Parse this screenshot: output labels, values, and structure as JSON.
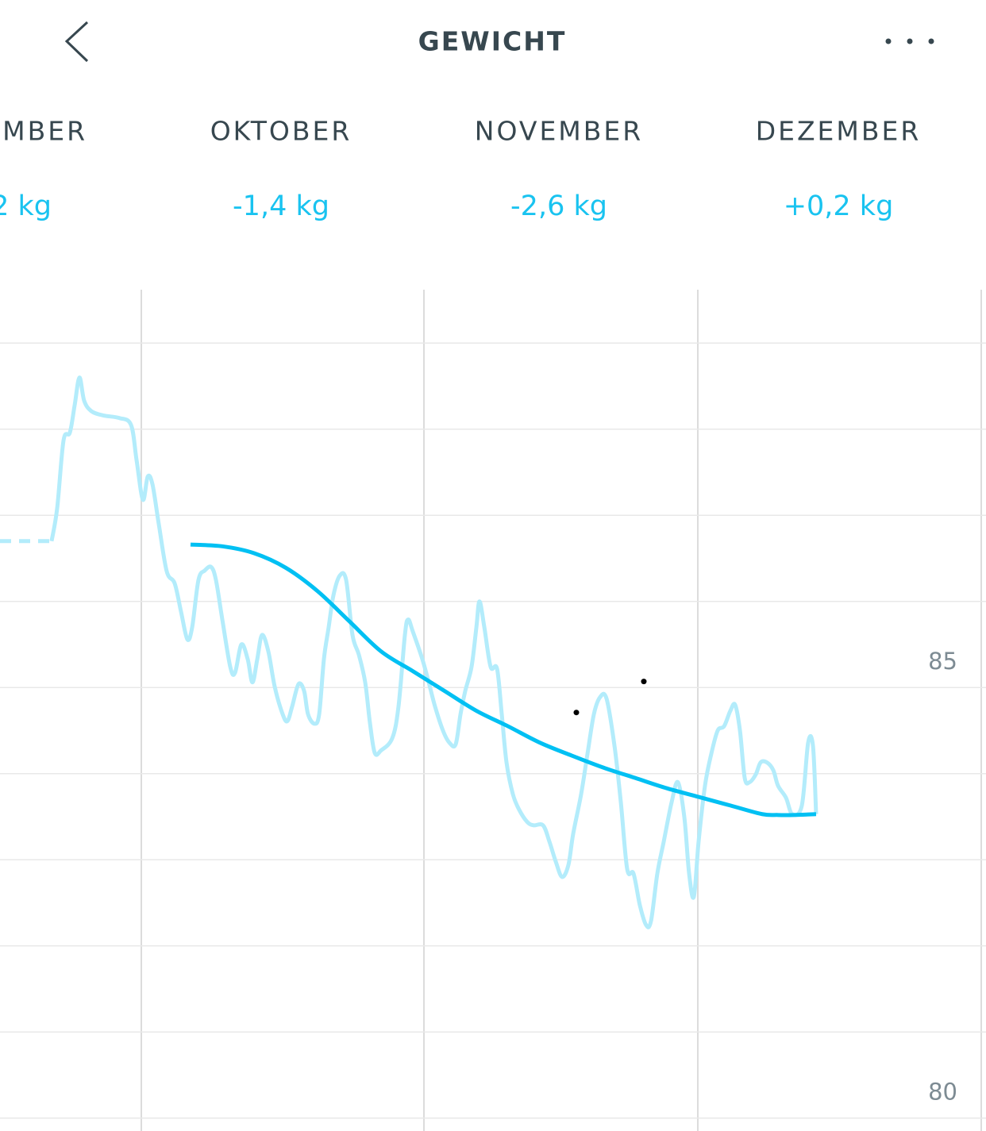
{
  "header": {
    "title": "GEWICHT"
  },
  "months": [
    {
      "label": "EMBER",
      "change": "2 kg"
    },
    {
      "label": "OKTOBER",
      "change": "-1,4 kg"
    },
    {
      "label": "NOVEMBER",
      "change": "-2,6 kg"
    },
    {
      "label": "DEZEMBER",
      "change": "+0,2 kg"
    }
  ],
  "chart_data": {
    "type": "line",
    "xlim": [
      -15.48,
      92.52
    ],
    "ylim": [
      79.85,
      89.62
    ],
    "yticks": [
      80,
      85
    ],
    "ygrid": [
      80,
      81,
      82,
      83,
      84,
      85,
      86,
      87,
      88,
      89
    ],
    "series": [
      {
        "color": "#b3ecfb",
        "dashed": true,
        "x": [
          -15.48,
          -9.83
        ],
        "values": [
          86.7,
          86.7
        ]
      },
      {
        "color": "#b3ecfb",
        "x": [
          -9.83,
          -9.22,
          -8.52,
          -7.83,
          -7.3,
          -6.78,
          -6.26,
          -5.48,
          -4.17,
          -2.43,
          -1.13,
          -0.52,
          0.17,
          0.7,
          1.22,
          1.91,
          2.78,
          3.65,
          4.35,
          5.04,
          5.57,
          6.26,
          6.96,
          7.65,
          8.17,
          8.87,
          9.74,
          10.26,
          10.96,
          11.65,
          12.17,
          12.7,
          13.22,
          13.91,
          14.61,
          15.48,
          16.0,
          16.52,
          17.22,
          17.83,
          18.26,
          18.96,
          19.48,
          20.0,
          20.52,
          21.04,
          21.74,
          22.43,
          23.13,
          23.83,
          24.52,
          25.04,
          25.57,
          26.26,
          27.48,
          28.17,
          28.87,
          29.22,
          29.74,
          30.78,
          31.48,
          32.17,
          33.04,
          33.74,
          34.43,
          34.96,
          35.48,
          36.17,
          36.7,
          37.04,
          37.57,
          38.26,
          38.96,
          39.48,
          40.0,
          40.7,
          41.39,
          42.26,
          42.96,
          44.0,
          44.7,
          45.39,
          46.09,
          46.78,
          47.3,
          48.17,
          48.87,
          49.57,
          50.26,
          50.96,
          51.83,
          52.52,
          53.22,
          53.91,
          54.61,
          55.3,
          55.83,
          56.52,
          57.22,
          58.09,
          58.78,
          59.48,
          60.0,
          60.52,
          61.04,
          61.74,
          62.43,
          63.13,
          63.83,
          64.52,
          65.04,
          65.57,
          66.09,
          66.61,
          67.3,
          67.83,
          68.52,
          69.22,
          69.74,
          70.61,
          71.3,
          72.35,
          73.04,
          73.57,
          73.91
        ],
        "values": [
          86.7,
          87.08,
          87.87,
          87.96,
          88.28,
          88.6,
          88.33,
          88.21,
          88.16,
          88.13,
          88.05,
          87.64,
          87.18,
          87.45,
          87.36,
          86.9,
          86.35,
          86.21,
          85.88,
          85.56,
          85.7,
          86.25,
          86.36,
          86.4,
          86.25,
          85.79,
          85.24,
          85.17,
          85.5,
          85.33,
          85.06,
          85.33,
          85.61,
          85.42,
          85.01,
          84.69,
          84.61,
          84.78,
          85.04,
          84.96,
          84.69,
          84.58,
          84.69,
          85.33,
          85.7,
          86.07,
          86.3,
          86.25,
          85.61,
          85.38,
          85.06,
          84.59,
          84.24,
          84.27,
          84.41,
          84.78,
          85.61,
          85.79,
          85.65,
          85.33,
          85.06,
          84.78,
          84.5,
          84.36,
          84.34,
          84.69,
          84.96,
          85.24,
          85.7,
          86.0,
          85.7,
          85.24,
          85.22,
          84.69,
          84.13,
          83.76,
          83.58,
          83.44,
          83.4,
          83.4,
          83.21,
          82.98,
          82.8,
          82.94,
          83.3,
          83.76,
          84.23,
          84.69,
          84.89,
          84.87,
          84.32,
          83.67,
          82.89,
          82.84,
          82.47,
          82.24,
          82.29,
          82.84,
          83.21,
          83.67,
          83.9,
          83.49,
          82.84,
          82.57,
          83.21,
          83.86,
          84.23,
          84.5,
          84.55,
          84.73,
          84.8,
          84.5,
          83.95,
          83.9,
          83.99,
          84.13,
          84.13,
          84.04,
          83.86,
          83.72,
          83.53,
          83.63,
          84.36,
          84.32,
          83.53
        ]
      },
      {
        "color": "#00c0f3",
        "x": [
          5.39,
          8.87,
          12.35,
          15.83,
          19.3,
          22.78,
          26.26,
          29.74,
          33.22,
          36.7,
          40.17,
          43.65,
          47.13,
          50.61,
          54.09,
          57.57,
          61.04,
          64.52,
          68.0,
          69.74,
          71.48,
          73.91
        ],
        "values": [
          86.66,
          86.64,
          86.56,
          86.39,
          86.12,
          85.77,
          85.42,
          85.19,
          84.96,
          84.73,
          84.55,
          84.36,
          84.21,
          84.07,
          83.95,
          83.83,
          83.73,
          83.63,
          83.53,
          83.52,
          83.52,
          83.53
        ]
      },
      {
        "color": "#000000",
        "markers_only": true,
        "x": [
          47.65,
          55.04
        ],
        "values": [
          84.71,
          85.07
        ]
      }
    ]
  }
}
